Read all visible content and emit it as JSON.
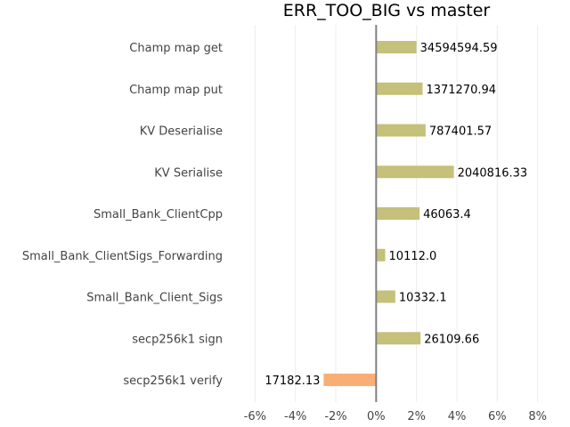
{
  "chart_data": {
    "type": "bar",
    "orientation": "horizontal",
    "title": "ERR_TOO_BIG vs master",
    "categories": [
      "Champ map get",
      "Champ map put",
      "KV Deserialise",
      "KV Serialise",
      "Small_Bank_ClientCpp",
      "Small_Bank_ClientSigs_Forwarding",
      "Small_Bank_Client_Sigs",
      "secp256k1 sign",
      "secp256k1 verify"
    ],
    "values": [
      2.0,
      2.3,
      2.45,
      3.85,
      2.15,
      0.45,
      0.95,
      2.2,
      -2.6
    ],
    "data_labels": [
      "34594594.59",
      "1371270.94",
      "787401.57",
      "2040816.33",
      "46063.4",
      "10112.0",
      "10332.1",
      "26109.66",
      "17182.13"
    ],
    "xlim": [
      -6.5,
      8.5
    ],
    "xticks": [
      -6,
      -4,
      -2,
      0,
      2,
      4,
      6,
      8
    ],
    "xtick_labels": [
      "-6%",
      "-4%",
      "-2%",
      "0%",
      "2%",
      "4%",
      "6%",
      "8%"
    ],
    "xlabel": "",
    "ylabel": "",
    "grid": true,
    "legend": "none",
    "colors": {
      "positive": "#c5c07a",
      "negative": "#f8ae74",
      "zero_line": "#808080",
      "grid": "#ececec"
    }
  }
}
